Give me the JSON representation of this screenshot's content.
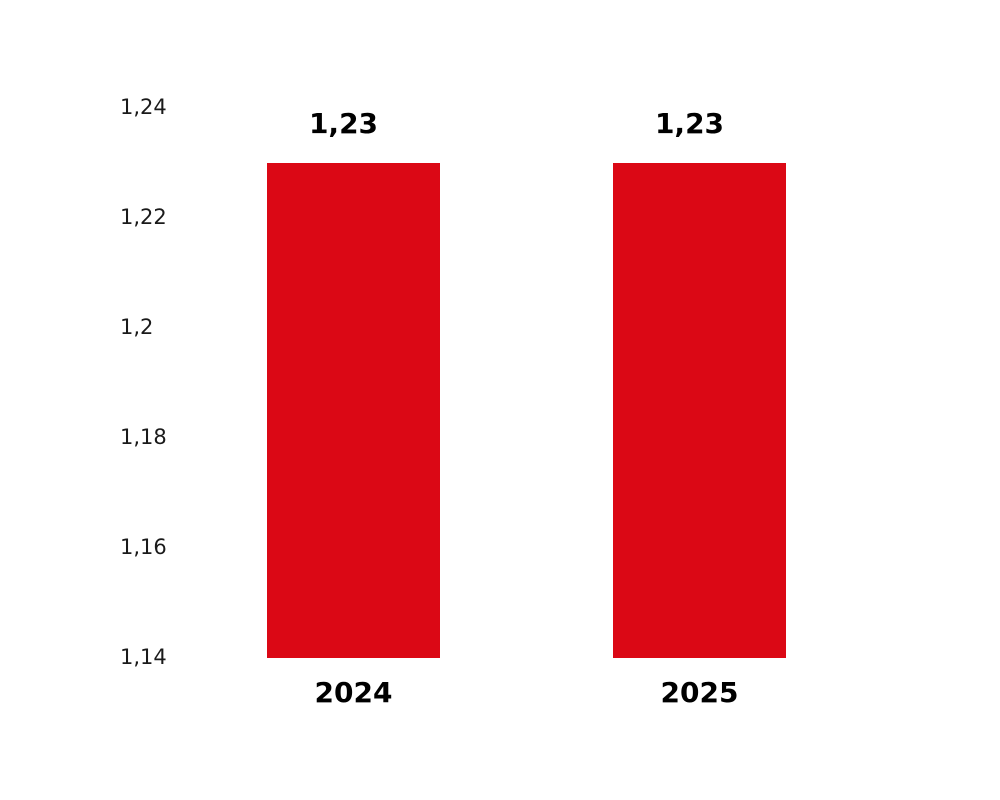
{
  "chart_data": {
    "type": "bar",
    "categories": [
      "2024",
      "2025"
    ],
    "values": [
      1.23,
      1.23
    ],
    "data_labels": [
      "1,23",
      "1,23"
    ],
    "ylim": [
      1.14,
      1.24
    ],
    "yticks": [
      1.14,
      1.16,
      1.18,
      1.2,
      1.22,
      1.24
    ],
    "ytick_labels": [
      "1,14",
      "1,16",
      "1,18",
      "1,2",
      "1,22",
      "1,24"
    ],
    "grid": false,
    "legend": "none",
    "title": "",
    "xlabel": "",
    "ylabel": ""
  },
  "colors": {
    "bar": "#db0815",
    "text": "#000000",
    "background": "#ffffff"
  }
}
